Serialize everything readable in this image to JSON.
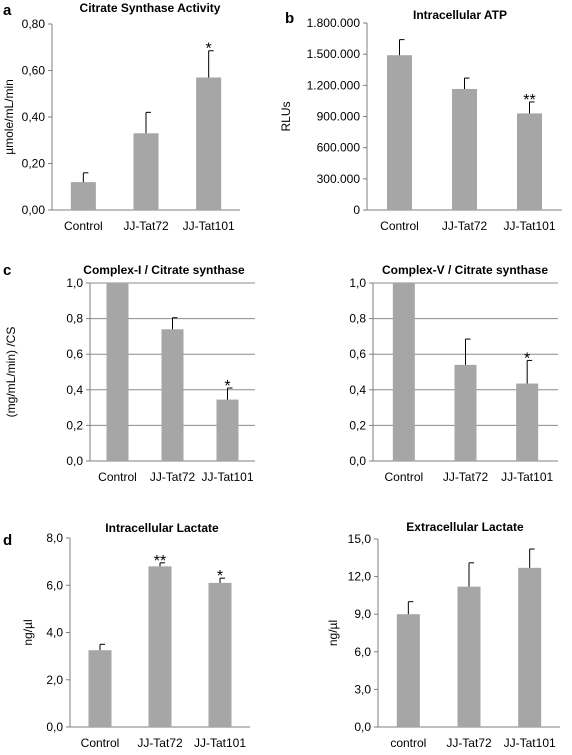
{
  "chart_data": [
    {
      "panel_letter": "a",
      "type": "bar",
      "title": "Citrate Synthase Activity",
      "ylabel": "µmole/mL/min",
      "xlabel": "",
      "categories": [
        "Control",
        "JJ-Tat72",
        "JJ-Tat101"
      ],
      "values": [
        0.12,
        0.33,
        0.57
      ],
      "errors": [
        0.04,
        0.09,
        0.115
      ],
      "significance": [
        "",
        "",
        "*"
      ],
      "ylim": [
        0,
        0.8
      ],
      "yticks": [
        "0,00",
        "0,20",
        "0,40",
        "0,60",
        "0,80"
      ],
      "grid": false
    },
    {
      "panel_letter": "b",
      "type": "bar",
      "title": "Intracellular ATP",
      "ylabel": "RLUs",
      "xlabel": "",
      "categories": [
        "Control",
        "JJ-Tat72",
        "JJ-Tat101"
      ],
      "values": [
        1490000,
        1165000,
        930000
      ],
      "errors": [
        150000,
        105000,
        110000
      ],
      "significance": [
        "",
        "",
        "**"
      ],
      "ylim": [
        0,
        1800000
      ],
      "yticks": [
        "0",
        "300.000",
        "600.000",
        "900.000",
        "1.200.000",
        "1.500.000",
        "1.800.000"
      ],
      "grid": false
    },
    {
      "panel_letter": "c",
      "type": "bar",
      "title": "Complex-I / Citrate synthase",
      "ylabel": "(mg/mL/min) /CS",
      "xlabel": "",
      "categories": [
        "Control",
        "JJ-Tat72",
        "JJ-Tat101"
      ],
      "values": [
        1.0,
        0.74,
        0.345
      ],
      "errors": [
        0,
        0.065,
        0.065
      ],
      "significance": [
        "",
        "",
        "*"
      ],
      "ylim": [
        0,
        1.0
      ],
      "yticks": [
        "0,0",
        "0,2",
        "0,4",
        "0,6",
        "0,8",
        "1,0"
      ],
      "grid": true
    },
    {
      "panel_letter": "",
      "type": "bar",
      "title": "Complex-V / Citrate synthase",
      "ylabel": "",
      "xlabel": "",
      "categories": [
        "Control",
        "JJ-Tat72",
        "JJ-Tat101"
      ],
      "values": [
        1.0,
        0.54,
        0.435
      ],
      "errors": [
        0,
        0.145,
        0.13
      ],
      "significance": [
        "",
        "",
        "*"
      ],
      "ylim": [
        0,
        1.0
      ],
      "yticks": [
        "0,0",
        "0,2",
        "0,4",
        "0,6",
        "0,8",
        "1,0"
      ],
      "grid": true
    },
    {
      "panel_letter": "d",
      "type": "bar",
      "title": "Intracellular Lactate",
      "ylabel": "ng/µl",
      "xlabel": "",
      "categories": [
        "Control",
        "JJ-Tat72",
        "JJ-Tat101"
      ],
      "values": [
        3.25,
        6.8,
        6.1
      ],
      "errors": [
        0.25,
        0.15,
        0.2
      ],
      "significance": [
        "",
        "**",
        "*"
      ],
      "ylim": [
        0,
        8
      ],
      "yticks": [
        "0,0",
        "2,0",
        "4,0",
        "6,0",
        "8,0"
      ],
      "grid": false
    },
    {
      "panel_letter": "",
      "type": "bar",
      "title": "Extracellular Lactate",
      "ylabel": "ng/µl",
      "xlabel": "",
      "categories": [
        "control",
        "JJ-Tat72",
        "JJ-Tat101"
      ],
      "values": [
        9.0,
        11.2,
        12.7
      ],
      "errors": [
        1.0,
        1.9,
        1.5
      ],
      "significance": [
        "",
        "",
        ""
      ],
      "ylim": [
        0,
        15
      ],
      "yticks": [
        "0,0",
        "3,0",
        "6,0",
        "9,0",
        "12,0",
        "15,0"
      ],
      "grid": false
    }
  ],
  "colors": {
    "bar": "#a6a6a6",
    "error_bar": "#000000",
    "axis": "#7f7f7f",
    "grid": "#8c8c8c",
    "text": "#000000"
  }
}
